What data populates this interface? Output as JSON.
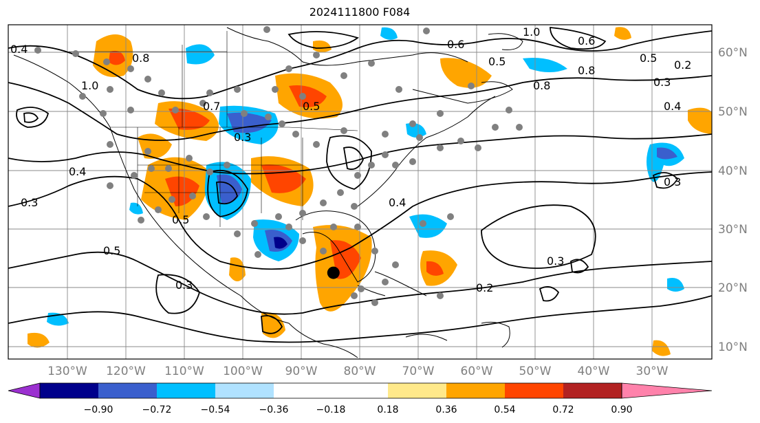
{
  "title": "2024111800 F084",
  "map": {
    "lon_labels": [
      "130°W",
      "120°W",
      "110°W",
      "100°W",
      "90°W",
      "80°W",
      "70°W",
      "60°W",
      "50°W",
      "40°W",
      "30°W"
    ],
    "lat_labels": [
      "60°N",
      "50°N",
      "40°N",
      "30°N",
      "20°N",
      "10°N"
    ],
    "contour_labels": [
      "0.4",
      "1.0",
      "0.8",
      "0.6",
      "0.5",
      "0.8",
      "0.4",
      "0.3",
      "0.2",
      "0.4",
      "0.3",
      "0.5",
      "0.5",
      "0.3",
      "0.4",
      "0.3",
      "0.2",
      "0.5",
      "0.3",
      "0.6",
      "0.5",
      "0.8",
      "1.0",
      "0.7",
      "0.3"
    ],
    "center_marker": {
      "lon": -84.5,
      "lat": 22.5
    }
  },
  "colorbar": {
    "ticks": [
      "−0.90",
      "−0.72",
      "−0.54",
      "−0.36",
      "−0.18",
      "0.18",
      "0.36",
      "0.54",
      "0.72",
      "0.90"
    ],
    "colors": {
      "under": "#9b30d0",
      "bins": [
        "#00008b",
        "#3a5fcd",
        "#00bfff",
        "#b0e2ff",
        "#ffffff",
        "#ffe98a",
        "#ffa500",
        "#ff4500",
        "#b22222"
      ],
      "over": "#ff82ab"
    }
  }
}
